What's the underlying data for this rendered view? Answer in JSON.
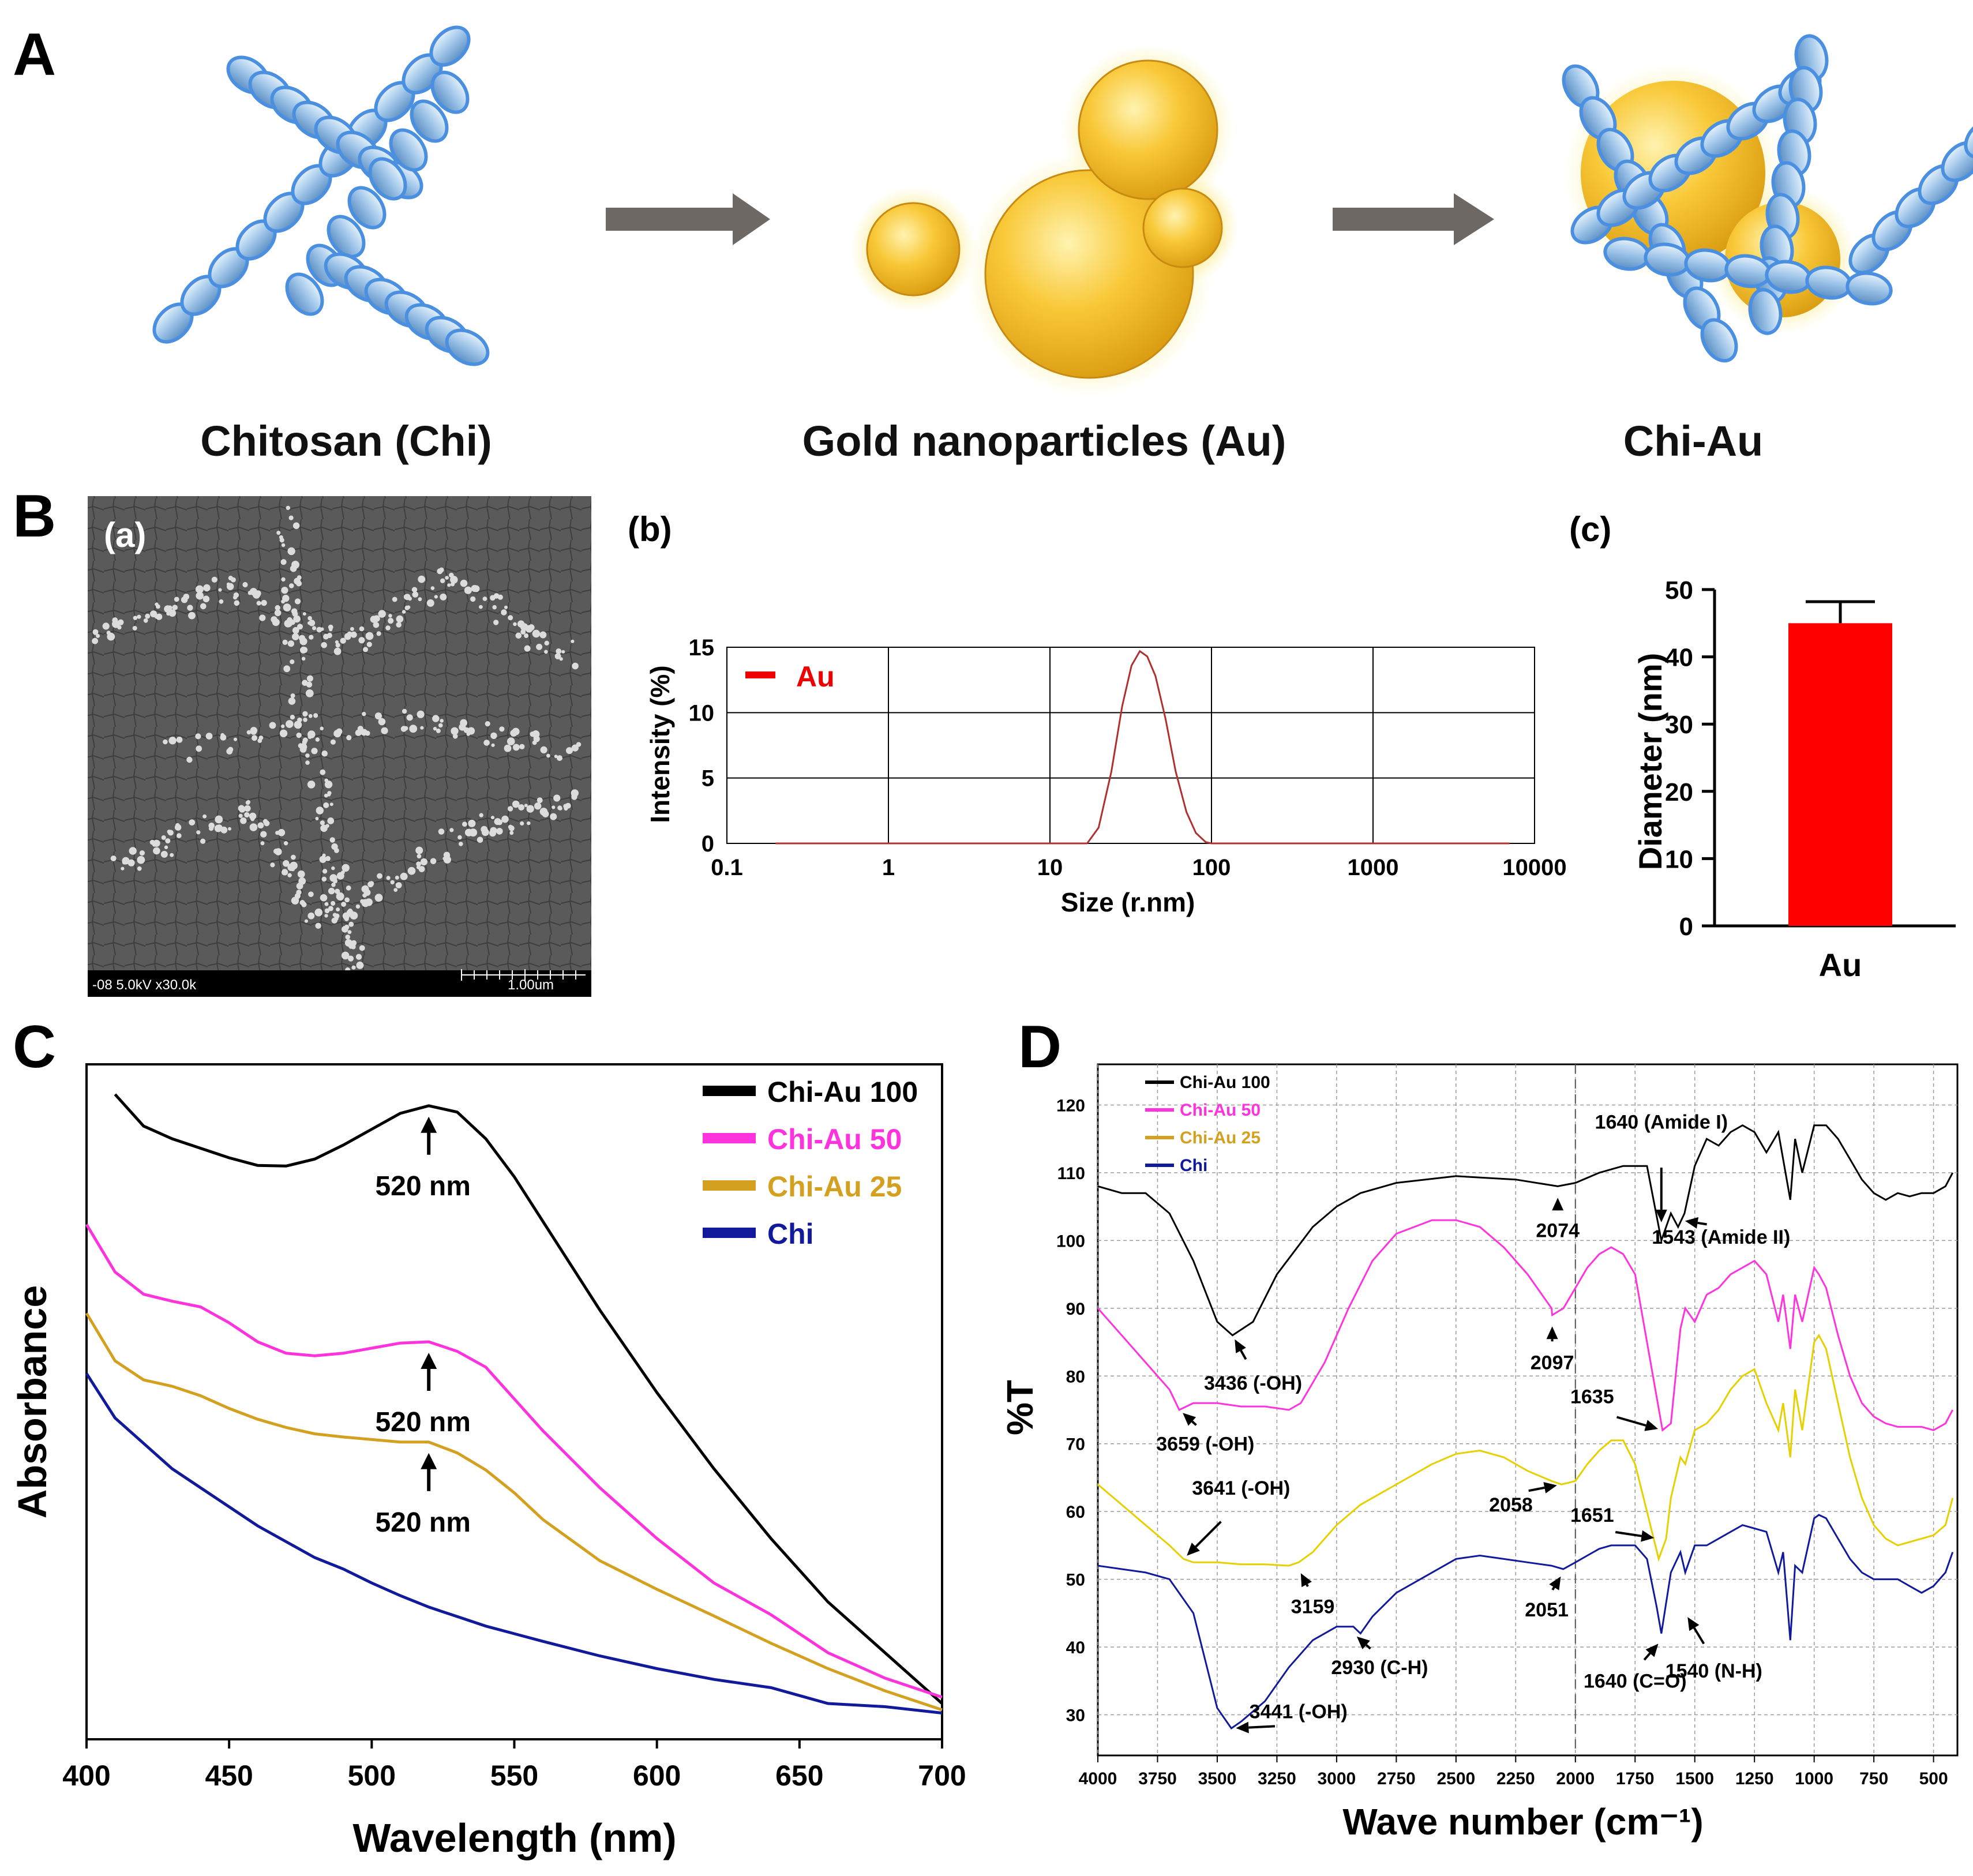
{
  "panel_labels": {
    "A": "A",
    "B": "B",
    "C": "C",
    "D": "D"
  },
  "schematic": {
    "chitosan_label": "Chitosan (Chi)",
    "gold_label": "Gold nanoparticles (Au)",
    "complex_label": "Chi-Au"
  },
  "sem": {
    "sub_label": "(a)",
    "info_text": "-08 5.0kV x30.0k",
    "scale_text": "1.00um"
  },
  "colors": {
    "chi_au_100": "#000000",
    "chi_au_50": "#ff33dd",
    "chi_au_25": "#d4a020",
    "chi_au_25_ftir": "#e6d000",
    "chi": "#101a9a",
    "au_bar": "#ff0000",
    "dls_line": "#b03030",
    "legend_au": "#ee0000"
  },
  "chart_data": [
    {
      "id": "b",
      "sub_label": "(b)",
      "type": "line",
      "x_scale": "log",
      "xlabel": "Size (r.nm)",
      "ylabel": "Intensity (%)",
      "xlim": [
        0.1,
        10000
      ],
      "ylim": [
        0,
        15
      ],
      "x_ticks": [
        "0.1",
        "1",
        "10",
        "100",
        "1000",
        "10000"
      ],
      "y_ticks": [
        "0",
        "5",
        "10",
        "15"
      ],
      "grid": true,
      "legend": "top-left",
      "series": [
        {
          "name": "Au",
          "x": [
            17,
            20,
            24,
            28,
            32,
            36,
            40,
            45,
            52,
            60,
            70,
            80,
            92,
            100
          ],
          "y": [
            0,
            1.2,
            5.5,
            10.5,
            13.6,
            14.7,
            14.3,
            12.8,
            9.5,
            5.5,
            2.4,
            0.8,
            0.1,
            0
          ]
        }
      ]
    },
    {
      "id": "c",
      "sub_label": "(c)",
      "type": "bar",
      "categories": [
        "Au"
      ],
      "values": [
        45
      ],
      "error": [
        3.2
      ],
      "ylabel": "Diameter (nm)",
      "ylim": [
        0,
        50
      ],
      "y_ticks": [
        "0",
        "10",
        "20",
        "30",
        "40",
        "50"
      ]
    },
    {
      "id": "C",
      "type": "line",
      "xlabel": "Wavelength (nm)",
      "ylabel": "Absorbance",
      "xlim": [
        400,
        700
      ],
      "x_ticks": [
        "400",
        "450",
        "500",
        "550",
        "600",
        "650",
        "700"
      ],
      "legend": "top-right",
      "series": [
        {
          "name": "Chi-Au 100",
          "x": [
            410,
            420,
            430,
            440,
            450,
            460,
            470,
            480,
            490,
            500,
            510,
            520,
            530,
            540,
            550,
            560,
            580,
            600,
            620,
            640,
            660,
            680,
            700
          ],
          "y": [
            0.98,
            0.93,
            0.91,
            0.895,
            0.88,
            0.868,
            0.867,
            0.878,
            0.9,
            0.925,
            0.95,
            0.962,
            0.952,
            0.91,
            0.85,
            0.78,
            0.64,
            0.51,
            0.39,
            0.28,
            0.18,
            0.1,
            0.02
          ]
        },
        {
          "name": "Chi-Au 50",
          "x": [
            400,
            410,
            420,
            430,
            440,
            450,
            460,
            470,
            480,
            490,
            500,
            510,
            520,
            530,
            540,
            550,
            560,
            580,
            600,
            620,
            640,
            660,
            680,
            700
          ],
          "y": [
            0.775,
            0.7,
            0.665,
            0.654,
            0.645,
            0.62,
            0.59,
            0.572,
            0.568,
            0.572,
            0.58,
            0.588,
            0.59,
            0.575,
            0.55,
            0.5,
            0.45,
            0.36,
            0.28,
            0.21,
            0.16,
            0.1,
            0.06,
            0.03
          ]
        },
        {
          "name": "Chi-Au 25",
          "x": [
            400,
            410,
            420,
            430,
            440,
            450,
            460,
            470,
            480,
            490,
            500,
            510,
            520,
            530,
            540,
            550,
            560,
            580,
            600,
            620,
            640,
            660,
            680,
            700
          ],
          "y": [
            0.635,
            0.56,
            0.53,
            0.52,
            0.505,
            0.485,
            0.468,
            0.455,
            0.445,
            0.44,
            0.436,
            0.432,
            0.432,
            0.415,
            0.388,
            0.352,
            0.31,
            0.245,
            0.2,
            0.158,
            0.115,
            0.075,
            0.04,
            0.01
          ]
        },
        {
          "name": "Chi",
          "x": [
            400,
            410,
            420,
            430,
            440,
            450,
            460,
            470,
            480,
            490,
            500,
            510,
            520,
            530,
            540,
            550,
            560,
            580,
            600,
            620,
            640,
            660,
            680,
            700
          ],
          "y": [
            0.54,
            0.47,
            0.43,
            0.39,
            0.36,
            0.33,
            0.3,
            0.275,
            0.25,
            0.232,
            0.21,
            0.19,
            0.172,
            0.157,
            0.142,
            0.13,
            0.118,
            0.095,
            0.075,
            0.058,
            0.045,
            0.02,
            0.015,
            0.005
          ]
        }
      ],
      "annotations": [
        "520 nm",
        "520 nm",
        "520 nm"
      ]
    },
    {
      "id": "D",
      "type": "line",
      "xlabel": "Wave number  (cm⁻¹)",
      "ylabel": "%T",
      "xlim": [
        4000,
        400
      ],
      "ylim": [
        24,
        126
      ],
      "x_ticks": [
        "4000",
        "3750",
        "3500",
        "3250",
        "3000",
        "2750",
        "2500",
        "2250",
        "2000",
        "1750",
        "1500",
        "1250",
        "1000",
        "750",
        "500"
      ],
      "y_ticks": [
        "30",
        "40",
        "50",
        "60",
        "70",
        "80",
        "90",
        "100",
        "110",
        "120"
      ],
      "grid": true,
      "legend": "top-left",
      "series": [
        {
          "name": "Chi-Au 100",
          "x": [
            4000,
            3900,
            3800,
            3700,
            3600,
            3500,
            3436,
            3350,
            3250,
            3100,
            3000,
            2900,
            2750,
            2500,
            2250,
            2074,
            2000,
            1900,
            1800,
            1700,
            1640,
            1600,
            1570,
            1543,
            1500,
            1450,
            1400,
            1350,
            1300,
            1250,
            1200,
            1150,
            1100,
            1080,
            1050,
            1000,
            950,
            900,
            850,
            800,
            750,
            700,
            650,
            600,
            550,
            500,
            450,
            420
          ],
          "y": [
            108,
            107,
            107,
            104,
            97,
            88,
            86,
            88,
            95,
            102,
            105,
            107,
            108.5,
            109.5,
            109,
            108,
            108.5,
            110,
            111,
            111,
            100,
            104,
            102,
            104,
            111,
            115,
            114,
            116,
            117,
            116,
            113,
            116,
            106,
            115,
            110,
            117,
            117,
            115,
            112,
            109,
            107,
            106,
            107,
            106.5,
            107,
            107,
            108,
            110
          ]
        },
        {
          "name": "Chi-Au 50",
          "x": [
            4000,
            3900,
            3800,
            3700,
            3659,
            3600,
            3500,
            3400,
            3300,
            3200,
            3150,
            3050,
            2950,
            2850,
            2750,
            2600,
            2500,
            2400,
            2300,
            2200,
            2100,
            2097,
            2050,
            2000,
            1950,
            1900,
            1850,
            1800,
            1750,
            1700,
            1650,
            1635,
            1600,
            1560,
            1540,
            1500,
            1450,
            1400,
            1350,
            1300,
            1250,
            1200,
            1150,
            1130,
            1100,
            1080,
            1050,
            1000,
            980,
            950,
            900,
            850,
            800,
            750,
            700,
            650,
            600,
            550,
            500,
            450,
            420
          ],
          "y": [
            90,
            86,
            82,
            78,
            75,
            76,
            76,
            75.5,
            75.5,
            75,
            76,
            82,
            90,
            97,
            101,
            103,
            103,
            102,
            99,
            95,
            90,
            89,
            90,
            93,
            96,
            98,
            99,
            98,
            95,
            85,
            75,
            72,
            73,
            87,
            90,
            88,
            92,
            93,
            95,
            96,
            97,
            95,
            88,
            92,
            84,
            92,
            88,
            96,
            95,
            93,
            86,
            80,
            76,
            74,
            73,
            72.5,
            72.5,
            72.5,
            72,
            73,
            75
          ]
        },
        {
          "name": "Chi-Au 25",
          "x": [
            4000,
            3900,
            3800,
            3700,
            3641,
            3600,
            3500,
            3400,
            3300,
            3200,
            3159,
            3100,
            3000,
            2900,
            2800,
            2700,
            2600,
            2500,
            2400,
            2300,
            2200,
            2100,
            2058,
            2000,
            1950,
            1900,
            1850,
            1800,
            1750,
            1700,
            1651,
            1620,
            1600,
            1560,
            1540,
            1500,
            1450,
            1400,
            1350,
            1300,
            1250,
            1200,
            1150,
            1130,
            1100,
            1080,
            1050,
            1000,
            980,
            950,
            900,
            850,
            800,
            750,
            700,
            650,
            600,
            550,
            500,
            450,
            420
          ],
          "y": [
            64,
            61,
            58,
            55,
            53,
            52.5,
            52.5,
            52.2,
            52.2,
            52,
            52.5,
            54,
            58,
            61,
            63,
            65,
            67,
            68.5,
            69,
            68,
            66,
            64.5,
            64,
            64.5,
            67,
            69,
            70.5,
            70.5,
            67,
            60,
            53,
            56,
            62,
            68,
            67,
            72,
            73,
            75,
            78,
            80,
            81,
            76,
            72,
            76,
            68,
            78,
            72,
            85,
            86,
            84,
            76,
            68,
            62,
            58,
            56,
            55,
            55.5,
            56,
            56.5,
            58,
            62
          ]
        },
        {
          "name": "Chi",
          "x": [
            4000,
            3900,
            3800,
            3700,
            3600,
            3550,
            3500,
            3441,
            3400,
            3300,
            3200,
            3100,
            3000,
            2930,
            2900,
            2850,
            2750,
            2600,
            2500,
            2400,
            2300,
            2200,
            2100,
            2051,
            2000,
            1950,
            1900,
            1850,
            1800,
            1750,
            1700,
            1660,
            1640,
            1600,
            1560,
            1540,
            1500,
            1450,
            1400,
            1350,
            1300,
            1250,
            1200,
            1150,
            1130,
            1100,
            1080,
            1050,
            1000,
            980,
            950,
            900,
            850,
            800,
            750,
            700,
            650,
            600,
            550,
            500,
            450,
            420
          ],
          "y": [
            52,
            51.5,
            51,
            50,
            45,
            38,
            31,
            28,
            29,
            32,
            37,
            41,
            43,
            43,
            42,
            44.5,
            48,
            51,
            53,
            53.5,
            53,
            52.5,
            52,
            51.5,
            52.5,
            53.5,
            54.5,
            55,
            55,
            55,
            53,
            46,
            42,
            51,
            54,
            51,
            55,
            55,
            56,
            57,
            58,
            57.5,
            57,
            51,
            54,
            41,
            52,
            51,
            59,
            59.5,
            59,
            56,
            53,
            51,
            50,
            50,
            50,
            49,
            48,
            49,
            51,
            54
          ]
        }
      ],
      "annotations": [
        "1640 (Amide I)",
        "1543 (Amide II)",
        "2074",
        "3436 (-OH)",
        "2097",
        "3659 (-OH)",
        "1635",
        "2058",
        "3641 (-OH)",
        "1651",
        "3159",
        "2051",
        "2930 (C-H)",
        "1640 (C=O)",
        "1540 (N-H)",
        "3441 (-OH)"
      ]
    }
  ]
}
